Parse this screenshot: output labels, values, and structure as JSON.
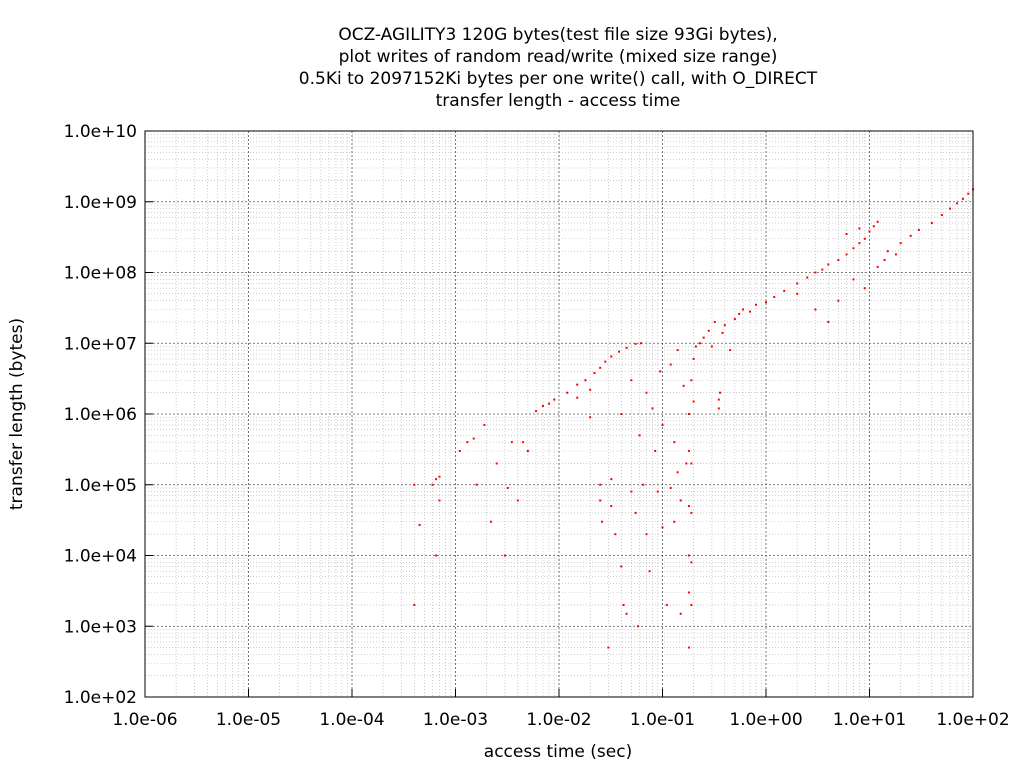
{
  "chart_data": {
    "type": "scatter",
    "title_lines": [
      "OCZ-AGILITY3 120G bytes(test file size 93Gi bytes),",
      "plot writes of random read/write (mixed size range)",
      "0.5Ki to 2097152Ki bytes per one write() call, with O_DIRECT",
      "transfer length - access time"
    ],
    "xlabel": "access time (sec)",
    "ylabel": "transfer length (bytes)",
    "x_scale": "log",
    "y_scale": "log",
    "xlim": [
      1e-06,
      100
    ],
    "ylim": [
      100,
      10000000000.0
    ],
    "x_ticks": [
      1e-06,
      1e-05,
      0.0001,
      0.001,
      0.01,
      0.1,
      1,
      10,
      100
    ],
    "x_tick_labels": [
      "1.0e-06",
      "1.0e-05",
      "1.0e-04",
      "1.0e-03",
      "1.0e-02",
      "1.0e-01",
      "1.0e+00",
      "1.0e+01",
      "1.0e+02"
    ],
    "y_ticks": [
      100,
      1000,
      10000,
      100000,
      1000000,
      10000000,
      100000000,
      1000000000,
      10000000000
    ],
    "y_tick_labels": [
      "1.0e+02",
      "1.0e+03",
      "1.0e+04",
      "1.0e+05",
      "1.0e+06",
      "1.0e+07",
      "1.0e+08",
      "1.0e+09",
      "1.0e+10"
    ],
    "grid": true,
    "minor_grid": true,
    "point_color": "#ff0000",
    "series": [
      {
        "points": [
          [
            0.0004,
            2000
          ],
          [
            0.0004,
            100000
          ],
          [
            0.00045,
            27000
          ],
          [
            0.0006,
            100000
          ],
          [
            0.00065,
            120000
          ],
          [
            0.0007,
            130000
          ],
          [
            0.00065,
            10000
          ],
          [
            0.0007,
            60000
          ],
          [
            0.0011,
            300000
          ],
          [
            0.0013,
            400000
          ],
          [
            0.0015,
            450000
          ],
          [
            0.0016,
            100000
          ],
          [
            0.0019,
            700000
          ],
          [
            0.0022,
            30000
          ],
          [
            0.0025,
            200000
          ],
          [
            0.003,
            10000
          ],
          [
            0.0032,
            90000
          ],
          [
            0.0035,
            400000
          ],
          [
            0.004,
            60000
          ],
          [
            0.0045,
            400000
          ],
          [
            0.005,
            300000
          ],
          [
            0.006,
            1100000
          ],
          [
            0.007,
            1300000
          ],
          [
            0.008,
            1400000
          ],
          [
            0.009,
            1600000
          ],
          [
            0.012,
            2000000
          ],
          [
            0.015,
            2600000
          ],
          [
            0.018,
            3000000
          ],
          [
            0.022,
            3800000
          ],
          [
            0.025,
            4500000
          ],
          [
            0.028,
            5500000
          ],
          [
            0.032,
            6500000
          ],
          [
            0.038,
            7600000
          ],
          [
            0.045,
            8600000
          ],
          [
            0.055,
            9800000
          ],
          [
            0.062,
            10000000
          ],
          [
            0.015,
            1700000
          ],
          [
            0.02,
            900000
          ],
          [
            0.02,
            2200000
          ],
          [
            0.025,
            100000
          ],
          [
            0.025,
            60000
          ],
          [
            0.026,
            30000
          ],
          [
            0.03,
            500
          ],
          [
            0.032,
            120000
          ],
          [
            0.032,
            50000
          ],
          [
            0.035,
            20000
          ],
          [
            0.04,
            1000000
          ],
          [
            0.04,
            7000
          ],
          [
            0.042,
            2000
          ],
          [
            0.045,
            1500
          ],
          [
            0.05,
            80000
          ],
          [
            0.05,
            3000000
          ],
          [
            0.055,
            40000
          ],
          [
            0.058,
            1000
          ],
          [
            0.06,
            500000
          ],
          [
            0.065,
            100000
          ],
          [
            0.07,
            2000000
          ],
          [
            0.07,
            20000
          ],
          [
            0.075,
            6000
          ],
          [
            0.08,
            1200000
          ],
          [
            0.085,
            300000
          ],
          [
            0.09,
            80000
          ],
          [
            0.095,
            4000000
          ],
          [
            0.1,
            25000
          ],
          [
            0.1,
            700000
          ],
          [
            0.11,
            2000
          ],
          [
            0.12,
            90000
          ],
          [
            0.12,
            5000000
          ],
          [
            0.13,
            400000
          ],
          [
            0.13,
            30000
          ],
          [
            0.14,
            8000000
          ],
          [
            0.14,
            150000
          ],
          [
            0.15,
            1500
          ],
          [
            0.15,
            60000
          ],
          [
            0.16,
            2500000
          ],
          [
            0.17,
            200000
          ],
          [
            0.18,
            500
          ],
          [
            0.18,
            3000
          ],
          [
            0.18,
            10000
          ],
          [
            0.18,
            50000
          ],
          [
            0.18,
            300000
          ],
          [
            0.18,
            1000000
          ],
          [
            0.19,
            2000
          ],
          [
            0.19,
            8000
          ],
          [
            0.19,
            40000
          ],
          [
            0.19,
            200000
          ],
          [
            0.19,
            3000000
          ],
          [
            0.2,
            1500000
          ],
          [
            0.2,
            6000000
          ],
          [
            0.21,
            9000000
          ],
          [
            0.23,
            10000000
          ],
          [
            0.25,
            12000000
          ],
          [
            0.28,
            15000000
          ],
          [
            0.3,
            9000000
          ],
          [
            0.32,
            20000000
          ],
          [
            0.35,
            1200000
          ],
          [
            0.35,
            1600000
          ],
          [
            0.36,
            2000000
          ],
          [
            0.38,
            14000000
          ],
          [
            0.4,
            18000000
          ],
          [
            0.45,
            8000000
          ],
          [
            0.5,
            22000000
          ],
          [
            0.55,
            26000000
          ],
          [
            0.6,
            30000000
          ],
          [
            0.7,
            28000000
          ],
          [
            0.8,
            35000000
          ],
          [
            1.0,
            38000000
          ],
          [
            1.2,
            45000000
          ],
          [
            1.5,
            55000000
          ],
          [
            2.0,
            70000000
          ],
          [
            2.5,
            85000000
          ],
          [
            3.0,
            100000000
          ],
          [
            3.5,
            110000000
          ],
          [
            4.0,
            130000000
          ],
          [
            5.0,
            150000000
          ],
          [
            6.0,
            180000000
          ],
          [
            7.0,
            220000000
          ],
          [
            8.0,
            260000000
          ],
          [
            9.0,
            300000000
          ],
          [
            10.0,
            380000000
          ],
          [
            11.0,
            450000000
          ],
          [
            12.0,
            520000000
          ],
          [
            2.0,
            50000000
          ],
          [
            3.0,
            30000000
          ],
          [
            4.0,
            20000000
          ],
          [
            5.0,
            40000000
          ],
          [
            7.0,
            80000000
          ],
          [
            9.0,
            60000000
          ],
          [
            12.0,
            120000000
          ],
          [
            15.0,
            200000000
          ],
          [
            20.0,
            260000000
          ],
          [
            25.0,
            330000000
          ],
          [
            30.0,
            400000000
          ],
          [
            40.0,
            500000000
          ],
          [
            50.0,
            650000000
          ],
          [
            60.0,
            800000000
          ],
          [
            70.0,
            950000000
          ],
          [
            80.0,
            1100000000
          ],
          [
            90.0,
            1300000000
          ],
          [
            100.0,
            1500000000
          ],
          [
            14.0,
            150000000
          ],
          [
            18.0,
            180000000
          ],
          [
            6.0,
            350000000
          ],
          [
            8.0,
            420000000
          ]
        ]
      }
    ]
  }
}
